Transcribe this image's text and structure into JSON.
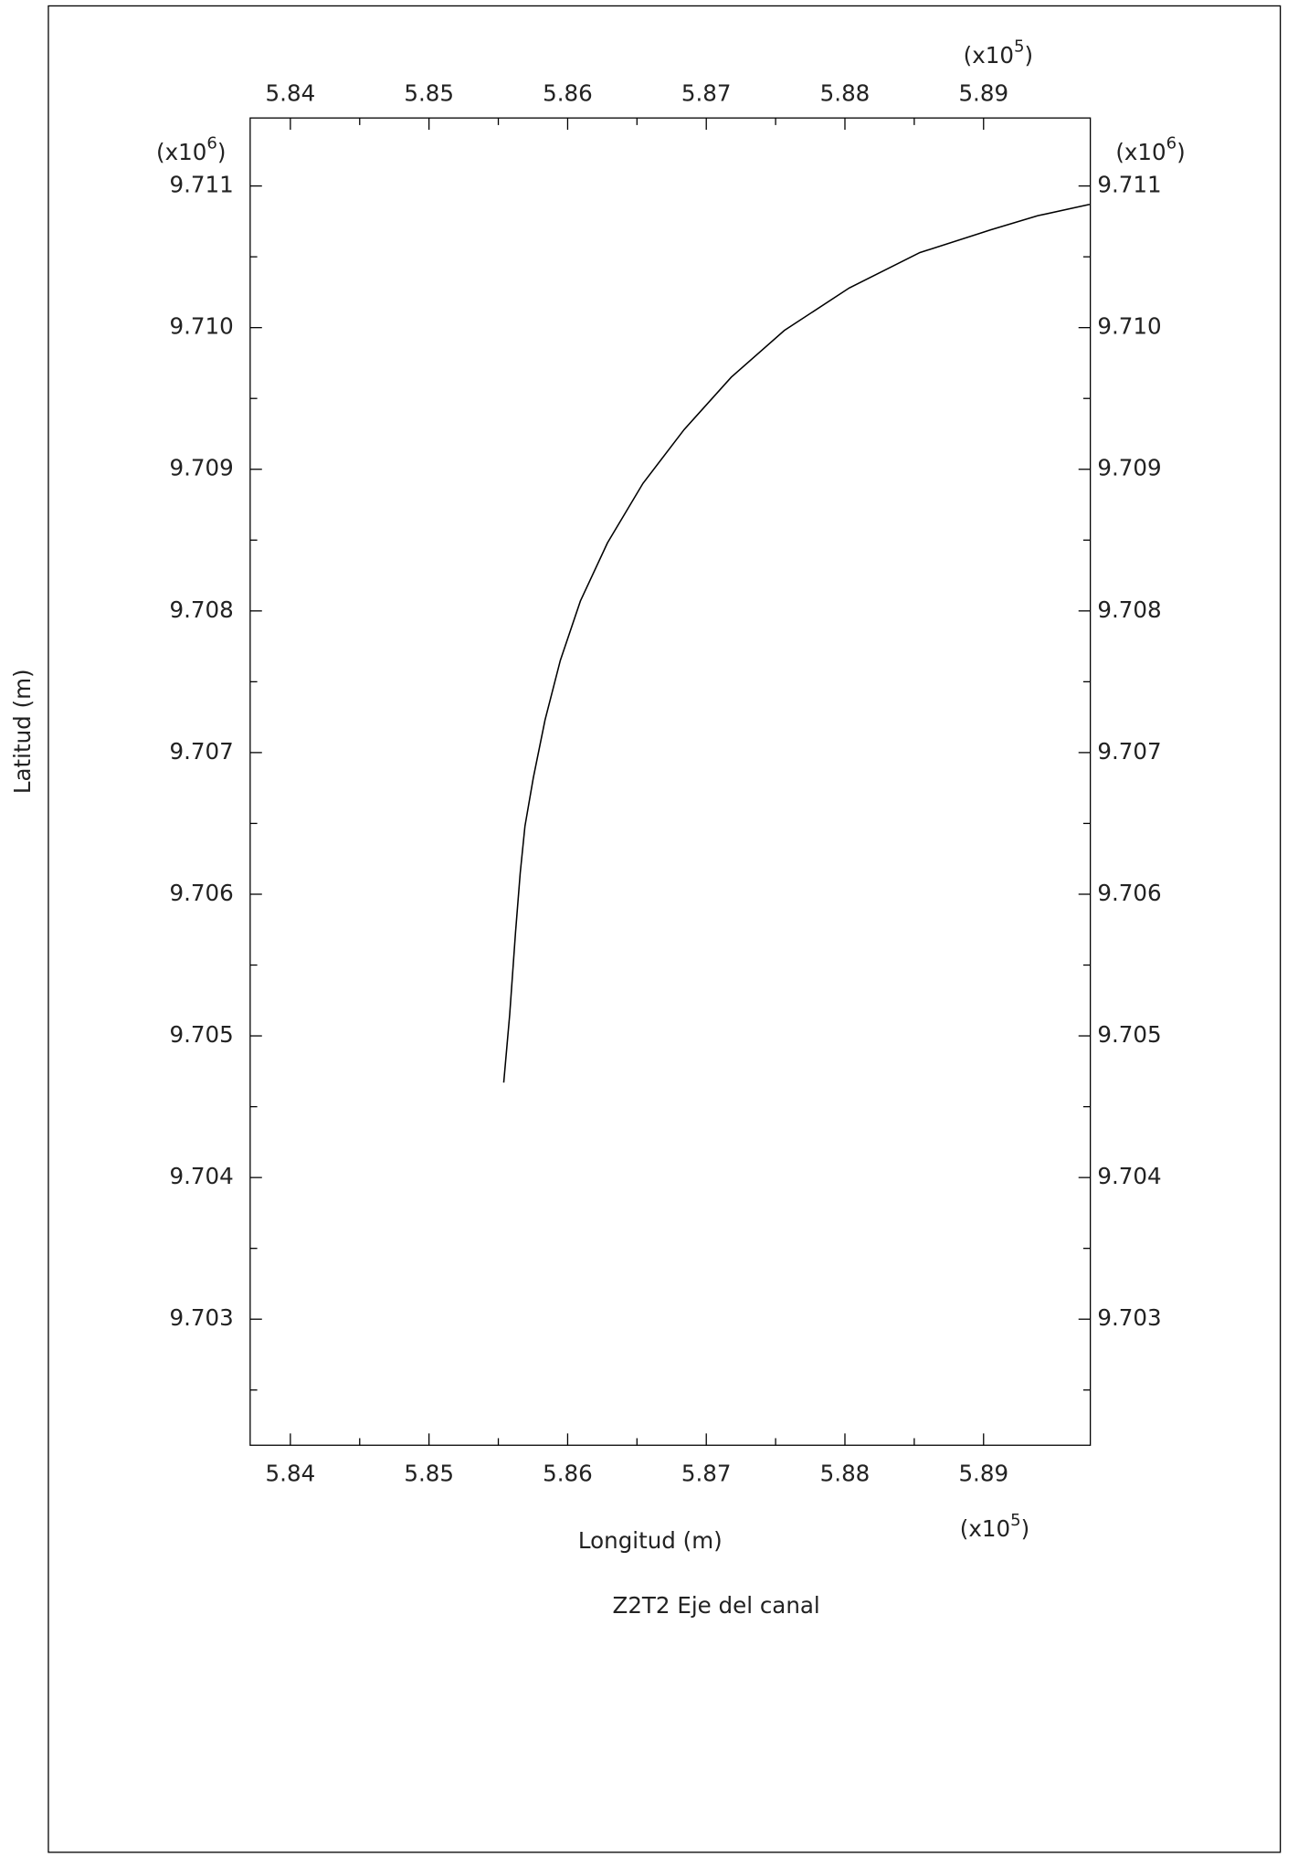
{
  "chart_data": {
    "type": "line",
    "title": "Z2T2 Eje del canal",
    "xlabel": "Longitud (m)",
    "ylabel": "Latitud (m)",
    "multiplier_open": "(x10",
    "multiplier_close": ")",
    "x_multiplier_exp": "5",
    "y_multiplier_exp": "6",
    "title_color": "#e8262a",
    "xlim": [
      5.8371,
      5.8977
    ],
    "ylim": [
      9.70211,
      9.71148
    ],
    "xticks": [
      5.84,
      5.85,
      5.86,
      5.87,
      5.88,
      5.89
    ],
    "yticks": [
      {
        "value": 9.703,
        "label": "9.703"
      },
      {
        "value": 9.704,
        "label": "9.704"
      },
      {
        "value": 9.705,
        "label": "9.705"
      },
      {
        "value": 9.706,
        "label": "9.706"
      },
      {
        "value": 9.707,
        "label": "9.707"
      },
      {
        "value": 9.708,
        "label": "9.708"
      },
      {
        "value": 9.709,
        "label": "9.709"
      },
      {
        "value": 9.71,
        "label": "9.710"
      },
      {
        "value": 9.711,
        "label": "9.711"
      }
    ],
    "series": [
      {
        "color": "#000000",
        "x": [
          5.85539,
          5.85582,
          5.85624,
          5.85658,
          5.85692,
          5.85752,
          5.85837,
          5.85947,
          5.86092,
          5.86287,
          5.86543,
          5.8684,
          5.8718,
          5.87563,
          5.88031,
          5.88541,
          5.89051,
          5.89391,
          5.89765
        ],
        "values": [
          9.70467,
          9.70515,
          9.70573,
          9.70615,
          9.70648,
          9.70682,
          9.70723,
          9.70765,
          9.70807,
          9.70848,
          9.7089,
          9.70928,
          9.70965,
          9.70998,
          9.71028,
          9.71053,
          9.71069,
          9.71079,
          9.71087
        ]
      }
    ]
  }
}
